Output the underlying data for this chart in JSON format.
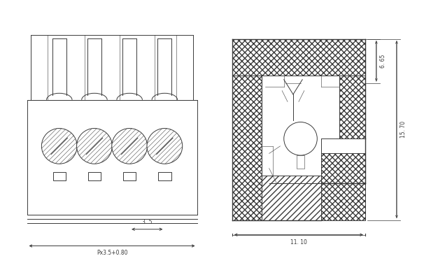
{
  "bg_color": "#ffffff",
  "line_color": "#3a3a3a",
  "dim_color": "#3a3a3a",
  "lw": 0.7,
  "lw_thin": 0.4,
  "lw_thick": 1.0,
  "labels": {
    "px_label": "Px3.5+0.80",
    "px_dim": "3. 5",
    "width_dim": "11. 10",
    "height_dim1": "6. 65",
    "height_dim2": "15. 70"
  },
  "figsize": [
    6.16,
    3.86
  ],
  "dpi": 100,
  "xlim": [
    0,
    105
  ],
  "ylim": [
    -5,
    67
  ]
}
